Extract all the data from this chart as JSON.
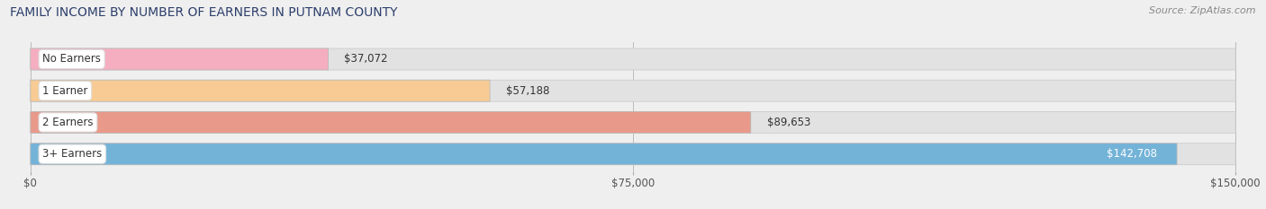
{
  "title": "FAMILY INCOME BY NUMBER OF EARNERS IN PUTNAM COUNTY",
  "source": "Source: ZipAtlas.com",
  "categories": [
    "No Earners",
    "1 Earner",
    "2 Earners",
    "3+ Earners"
  ],
  "values": [
    37072,
    57188,
    89653,
    142708
  ],
  "bar_colors": [
    "#f5aec0",
    "#f7cb93",
    "#e8998a",
    "#74b3d8"
  ],
  "label_colors": [
    "#444444",
    "#444444",
    "#444444",
    "#ffffff"
  ],
  "x_max": 150000,
  "x_ticks": [
    0,
    75000,
    150000
  ],
  "x_tick_labels": [
    "$0",
    "$75,000",
    "$150,000"
  ],
  "background_color": "#efefef",
  "bar_bg_color": "#e2e2e2",
  "title_color": "#2c3e6b",
  "source_color": "#888888",
  "title_fontsize": 10,
  "source_fontsize": 8,
  "label_fontsize": 8.5,
  "value_fontsize": 8.5,
  "bar_height": 0.68
}
